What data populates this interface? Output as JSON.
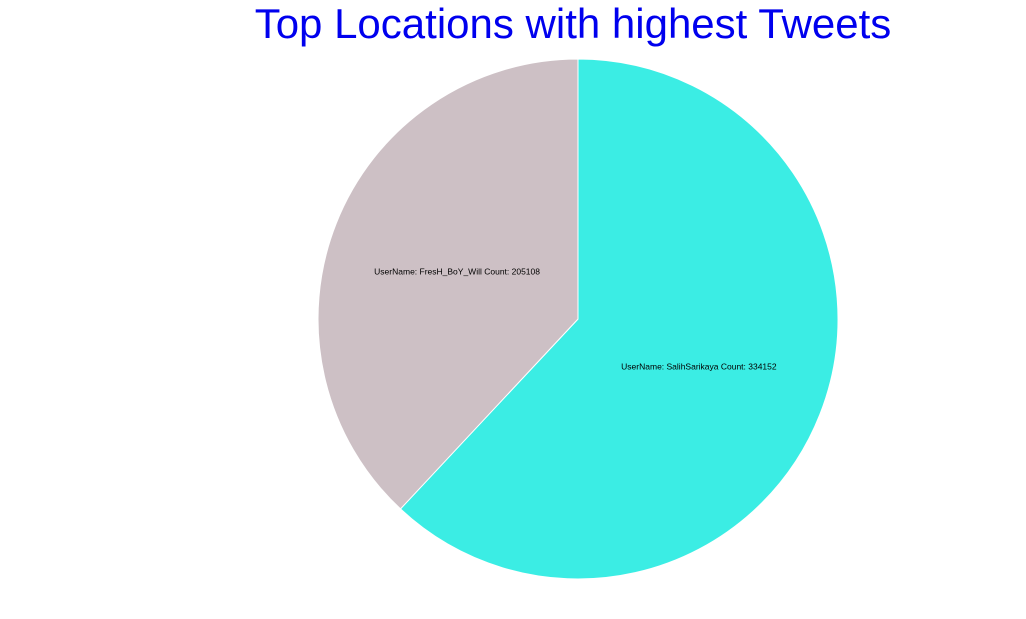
{
  "chart_data": {
    "type": "pie",
    "title": "Top Locations with highest Tweets",
    "title_color": "#0000ee",
    "slices": [
      {
        "label": "UserName: SalihSarikaya Count: 334152",
        "value": 334152,
        "color": "#3bede4"
      },
      {
        "label": "UserName: FresH_BoY_Will Count: 205108",
        "value": 205108,
        "color": "#cdc0c5"
      }
    ],
    "slice_border_color": "#ffffff",
    "start": "12 o'clock",
    "direction": "clockwise"
  }
}
